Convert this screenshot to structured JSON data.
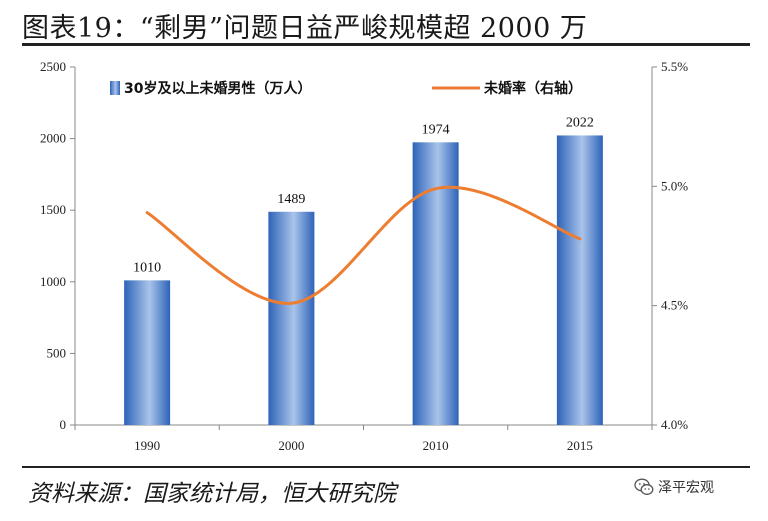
{
  "header": {
    "title": "图表19：“剩男”问题日益严峻规模超 2000 万"
  },
  "footer": {
    "source": "资料来源：国家统计局，恒大研究院",
    "brand": "泽平宏观"
  },
  "colors": {
    "bar": "#2e63b8",
    "bar_light": "#a9c4ea",
    "line": "#ed7d31",
    "axis": "#888888",
    "text": "#111111"
  },
  "chart_data": {
    "type": "bar",
    "categories": [
      "1990",
      "2000",
      "2010",
      "2015"
    ],
    "series": [
      {
        "name": "30岁及以上未婚男性（万人）",
        "type": "bar",
        "axis": "left",
        "values": [
          1010,
          1489,
          1974,
          2022
        ],
        "labels": [
          "1010",
          "1489",
          "1974",
          "2022"
        ]
      },
      {
        "name": "未婚率（右轴）",
        "type": "line",
        "axis": "right",
        "values": [
          4.89,
          4.51,
          4.99,
          4.78
        ]
      }
    ],
    "y_left": {
      "min": 0,
      "max": 2500,
      "ticks": [
        0,
        500,
        1000,
        1500,
        2000,
        2500
      ],
      "tick_labels": [
        "0",
        "500",
        "1000",
        "1500",
        "2000",
        "2500"
      ]
    },
    "y_right": {
      "min": 4.0,
      "max": 5.5,
      "ticks": [
        4.0,
        4.5,
        5.0,
        5.5
      ],
      "tick_labels": [
        "4.0%",
        "4.5%",
        "5.0%",
        "5.5%"
      ]
    },
    "legend_position": "top",
    "grid": false
  }
}
